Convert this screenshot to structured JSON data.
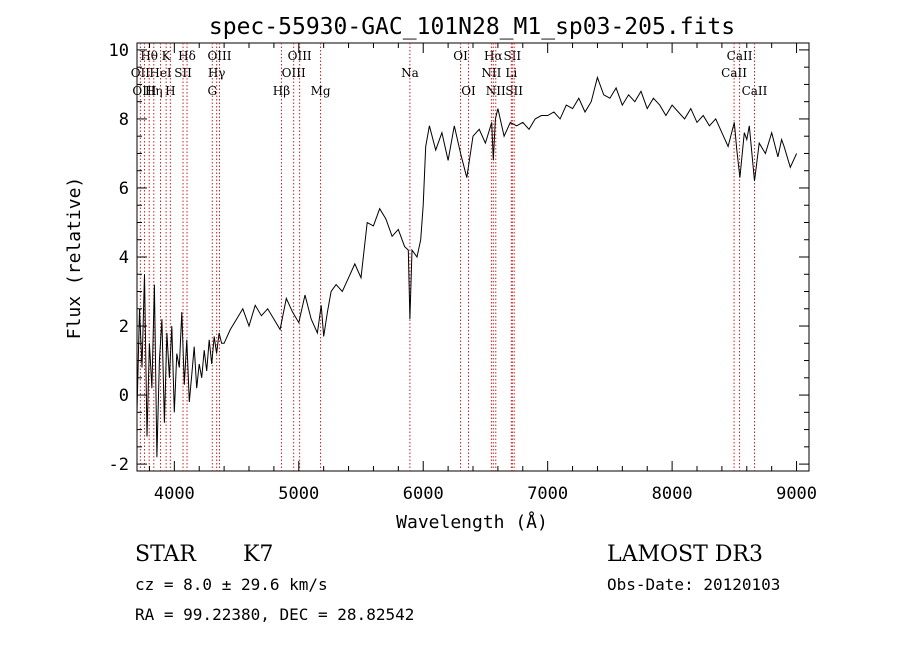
{
  "chart_data": {
    "type": "line",
    "title": "spec-55930-GAC_101N28_M1_sp03-205.fits",
    "xlabel": "Wavelength (Å)",
    "ylabel": "Flux (relative)",
    "xlim": [
      3700,
      9100
    ],
    "ylim": [
      -2.2,
      10.2
    ],
    "x_ticks": [
      4000,
      5000,
      6000,
      7000,
      8000,
      9000
    ],
    "y_ticks": [
      -2,
      0,
      2,
      4,
      6,
      8,
      10
    ],
    "grid": false,
    "colors": {
      "spectrum": "#000000",
      "lines": "#cc2222"
    },
    "spectrum": {
      "name": "flux",
      "x": [
        3700,
        3720,
        3740,
        3760,
        3780,
        3800,
        3820,
        3840,
        3860,
        3880,
        3900,
        3920,
        3940,
        3960,
        3980,
        4000,
        4020,
        4040,
        4060,
        4080,
        4100,
        4120,
        4140,
        4160,
        4180,
        4200,
        4220,
        4240,
        4260,
        4280,
        4300,
        4320,
        4340,
        4360,
        4380,
        4400,
        4450,
        4500,
        4550,
        4600,
        4650,
        4700,
        4750,
        4800,
        4850,
        4900,
        4950,
        5000,
        5050,
        5100,
        5150,
        5180,
        5200,
        5230,
        5260,
        5300,
        5350,
        5400,
        5450,
        5500,
        5550,
        5600,
        5650,
        5700,
        5750,
        5800,
        5850,
        5880,
        5893,
        5910,
        5950,
        5980,
        6000,
        6020,
        6050,
        6100,
        6150,
        6200,
        6250,
        6300,
        6350,
        6400,
        6450,
        6500,
        6550,
        6563,
        6580,
        6600,
        6650,
        6700,
        6750,
        6800,
        6850,
        6900,
        6950,
        7000,
        7050,
        7100,
        7150,
        7200,
        7250,
        7300,
        7350,
        7400,
        7450,
        7500,
        7550,
        7600,
        7650,
        7700,
        7750,
        7800,
        7850,
        7900,
        7950,
        8000,
        8050,
        8100,
        8150,
        8200,
        8250,
        8300,
        8350,
        8400,
        8450,
        8500,
        8520,
        8545,
        8580,
        8600,
        8620,
        8662,
        8700,
        8750,
        8800,
        8850,
        8880,
        8900,
        8950,
        9000
      ],
      "y": [
        -0.5,
        2.5,
        0.8,
        3.5,
        -1.2,
        1.5,
        0.2,
        3.2,
        -1.8,
        1.0,
        2.2,
        -0.8,
        1.8,
        0.5,
        2.0,
        -0.5,
        1.2,
        0.8,
        2.4,
        0.3,
        1.6,
        -0.2,
        0.6,
        1.4,
        0.2,
        0.9,
        0.5,
        1.3,
        0.7,
        1.6,
        0.9,
        1.7,
        1.2,
        1.8,
        1.5,
        1.5,
        1.9,
        2.2,
        2.5,
        2.0,
        2.6,
        2.3,
        2.5,
        2.2,
        1.9,
        2.8,
        2.4,
        2.1,
        2.9,
        2.2,
        1.8,
        2.6,
        1.7,
        2.4,
        3.0,
        3.2,
        3.0,
        3.4,
        3.8,
        3.4,
        5.0,
        4.9,
        5.4,
        5.1,
        4.6,
        4.8,
        4.3,
        4.2,
        2.2,
        4.2,
        4.0,
        4.5,
        5.5,
        7.2,
        7.8,
        7.1,
        7.6,
        6.8,
        7.8,
        7.0,
        6.3,
        7.5,
        7.7,
        7.3,
        7.9,
        6.8,
        8.0,
        8.3,
        7.5,
        7.9,
        7.8,
        7.9,
        7.7,
        8.0,
        8.1,
        8.1,
        8.2,
        8.0,
        8.4,
        8.3,
        8.6,
        8.2,
        8.5,
        9.2,
        8.7,
        8.6,
        8.9,
        8.4,
        8.7,
        8.5,
        8.8,
        8.3,
        8.6,
        8.4,
        8.1,
        8.4,
        8.2,
        8.0,
        8.3,
        7.9,
        8.1,
        7.8,
        8.0,
        7.6,
        7.2,
        7.9,
        7.1,
        6.3,
        7.6,
        7.4,
        7.8,
        6.2,
        7.3,
        7.0,
        7.6,
        6.9,
        7.4,
        7.2,
        6.6,
        7.0
      ]
    },
    "line_markers": [
      {
        "label": "Hθ",
        "wavelength": 3798,
        "row": 0
      },
      {
        "label": "OII",
        "wavelength": 3727,
        "row": 1
      },
      {
        "label": "OIII",
        "wavelength": 3760,
        "row": 2
      },
      {
        "label": "Hη",
        "wavelength": 3835,
        "row": 2
      },
      {
        "label": "HeI",
        "wavelength": 3889,
        "row": 1
      },
      {
        "label": "K",
        "wavelength": 3934,
        "row": 0
      },
      {
        "label": "H",
        "wavelength": 3968,
        "row": 2
      },
      {
        "label": "SII",
        "wavelength": 4070,
        "row": 1
      },
      {
        "label": "Hδ",
        "wavelength": 4102,
        "row": 0
      },
      {
        "label": "G",
        "wavelength": 4305,
        "row": 2
      },
      {
        "label": "Hγ",
        "wavelength": 4340,
        "row": 1
      },
      {
        "label": "OIII",
        "wavelength": 4363,
        "row": 0
      },
      {
        "label": "Hβ",
        "wavelength": 4861,
        "row": 2
      },
      {
        "label": "OIII",
        "wavelength": 4959,
        "row": 1
      },
      {
        "label": "OIII",
        "wavelength": 5007,
        "row": 0
      },
      {
        "label": "Mg",
        "wavelength": 5175,
        "row": 2
      },
      {
        "label": "Na",
        "wavelength": 5893,
        "row": 1
      },
      {
        "label": "OI",
        "wavelength": 6300,
        "row": 0
      },
      {
        "label": "OI",
        "wavelength": 6364,
        "row": 2
      },
      {
        "label": "Hα",
        "wavelength": 6563,
        "row": 0
      },
      {
        "label": "NII",
        "wavelength": 6548,
        "row": 1
      },
      {
        "label": "NII",
        "wavelength": 6583,
        "row": 2
      },
      {
        "label": "SII",
        "wavelength": 6716,
        "row": 0
      },
      {
        "label": "Li",
        "wavelength": 6708,
        "row": 1
      },
      {
        "label": "SII",
        "wavelength": 6731,
        "row": 2
      },
      {
        "label": "CaII",
        "wavelength": 8542,
        "row": 0
      },
      {
        "label": "CaII",
        "wavelength": 8498,
        "row": 1
      },
      {
        "label": "CaII",
        "wavelength": 8662,
        "row": 2
      }
    ]
  },
  "info": {
    "class": "STAR",
    "subclass": "K7",
    "survey": "LAMOST DR3",
    "redshift": "cz =  8.0 ± 29.6 km/s",
    "obs_date": "Obs-Date: 20120103",
    "coords": "RA =  99.22380, DEC =  28.82542"
  }
}
